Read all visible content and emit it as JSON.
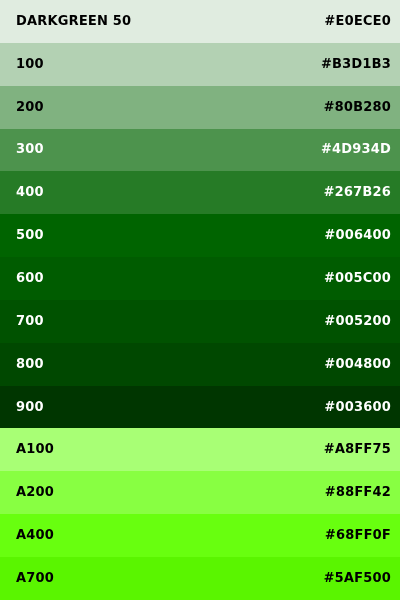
{
  "palette": {
    "swatches": [
      {
        "name": "DARKGREEN 50",
        "hex": "#E0ECE0",
        "bg": "#E0ECE0",
        "fg": "#000000"
      },
      {
        "name": "100",
        "hex": "#B3D1B3",
        "bg": "#B3D1B3",
        "fg": "#000000"
      },
      {
        "name": "200",
        "hex": "#80B280",
        "bg": "#80B280",
        "fg": "#000000"
      },
      {
        "name": "300",
        "hex": "#4D934D",
        "bg": "#4D934D",
        "fg": "#FFFFFF"
      },
      {
        "name": "400",
        "hex": "#267B26",
        "bg": "#267B26",
        "fg": "#FFFFFF"
      },
      {
        "name": "500",
        "hex": "#006400",
        "bg": "#006400",
        "fg": "#FFFFFF"
      },
      {
        "name": "600",
        "hex": "#005C00",
        "bg": "#005C00",
        "fg": "#FFFFFF"
      },
      {
        "name": "700",
        "hex": "#005200",
        "bg": "#005200",
        "fg": "#FFFFFF"
      },
      {
        "name": "800",
        "hex": "#004800",
        "bg": "#004800",
        "fg": "#FFFFFF"
      },
      {
        "name": "900",
        "hex": "#003600",
        "bg": "#003600",
        "fg": "#FFFFFF"
      },
      {
        "name": "A100",
        "hex": "#A8FF75",
        "bg": "#A8FF75",
        "fg": "#000000"
      },
      {
        "name": "A200",
        "hex": "#88FF42",
        "bg": "#88FF42",
        "fg": "#000000"
      },
      {
        "name": "A400",
        "hex": "#68FF0F",
        "bg": "#68FF0F",
        "fg": "#000000"
      },
      {
        "name": "A700",
        "hex": "#5AF500",
        "bg": "#5AF500",
        "fg": "#000000"
      }
    ]
  }
}
